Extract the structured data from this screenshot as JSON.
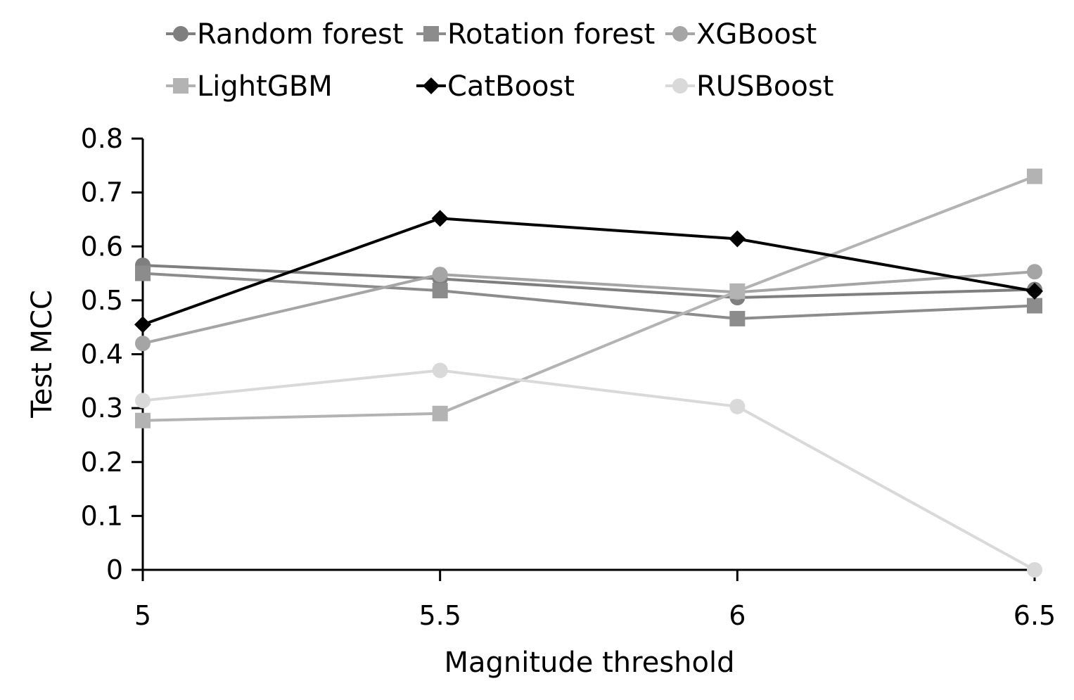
{
  "chart_data": {
    "type": "line",
    "x": [
      5,
      5.5,
      6,
      6.5
    ],
    "x_tick_labels": [
      "5",
      "5.5",
      "6",
      "6.5"
    ],
    "y_tick_labels": [
      "0",
      "0.1",
      "0.2",
      "0.3",
      "0.4",
      "0.5",
      "0.6",
      "0.7",
      "0.8"
    ],
    "xlabel": "Magnitude threshold",
    "ylabel": "Test MCC",
    "xlim": [
      5,
      6.5
    ],
    "ylim": [
      0,
      0.8
    ],
    "grid": false,
    "legend_position": "top",
    "series": [
      {
        "name": "Random forest",
        "marker": "circle",
        "color": "#7f7f7f",
        "values": [
          0.565,
          0.54,
          0.505,
          0.52
        ]
      },
      {
        "name": "Rotation forest",
        "marker": "square",
        "color": "#8c8c8c",
        "values": [
          0.55,
          0.518,
          0.466,
          0.49
        ]
      },
      {
        "name": "XGBoost",
        "marker": "circle",
        "color": "#a5a5a5",
        "values": [
          0.42,
          0.548,
          0.515,
          0.553
        ]
      },
      {
        "name": "LightGBM",
        "marker": "square",
        "color": "#b3b3b3",
        "values": [
          0.277,
          0.29,
          0.517,
          0.73
        ]
      },
      {
        "name": "CatBoost",
        "marker": "diamond",
        "color": "#000000",
        "values": [
          0.455,
          0.652,
          0.614,
          0.517
        ]
      },
      {
        "name": "RUSBoost",
        "marker": "circle",
        "color": "#d9d9d9",
        "values": [
          0.314,
          0.37,
          0.303,
          0.0
        ]
      }
    ]
  }
}
